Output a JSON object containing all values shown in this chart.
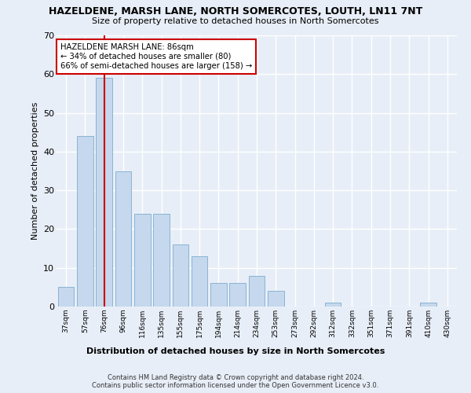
{
  "title": "HAZELDENE, MARSH LANE, NORTH SOMERCOTES, LOUTH, LN11 7NT",
  "subtitle": "Size of property relative to detached houses in North Somercotes",
  "xlabel_bottom": "Distribution of detached houses by size in North Somercotes",
  "ylabel": "Number of detached properties",
  "categories": [
    "37sqm",
    "57sqm",
    "76sqm",
    "96sqm",
    "116sqm",
    "135sqm",
    "155sqm",
    "175sqm",
    "194sqm",
    "214sqm",
    "234sqm",
    "253sqm",
    "273sqm",
    "292sqm",
    "312sqm",
    "332sqm",
    "351sqm",
    "371sqm",
    "391sqm",
    "410sqm",
    "430sqm"
  ],
  "values": [
    5,
    44,
    59,
    35,
    24,
    24,
    16,
    13,
    6,
    6,
    8,
    4,
    0,
    0,
    1,
    0,
    0,
    0,
    0,
    1,
    0
  ],
  "bar_color": "#c5d8ed",
  "bar_edge_color": "#8ab4d4",
  "ylim": [
    0,
    70
  ],
  "yticks": [
    0,
    10,
    20,
    30,
    40,
    50,
    60,
    70
  ],
  "annotation_title": "HAZELDENE MARSH LANE: 86sqm",
  "annotation_line1": "← 34% of detached houses are smaller (80)",
  "annotation_line2": "66% of semi-detached houses are larger (158) →",
  "annotation_box_color": "#ffffff",
  "annotation_border_color": "#cc0000",
  "vline_color": "#cc0000",
  "footer1": "Contains HM Land Registry data © Crown copyright and database right 2024.",
  "footer2": "Contains public sector information licensed under the Open Government Licence v3.0.",
  "background_color": "#e8eef7",
  "grid_color": "#ffffff"
}
